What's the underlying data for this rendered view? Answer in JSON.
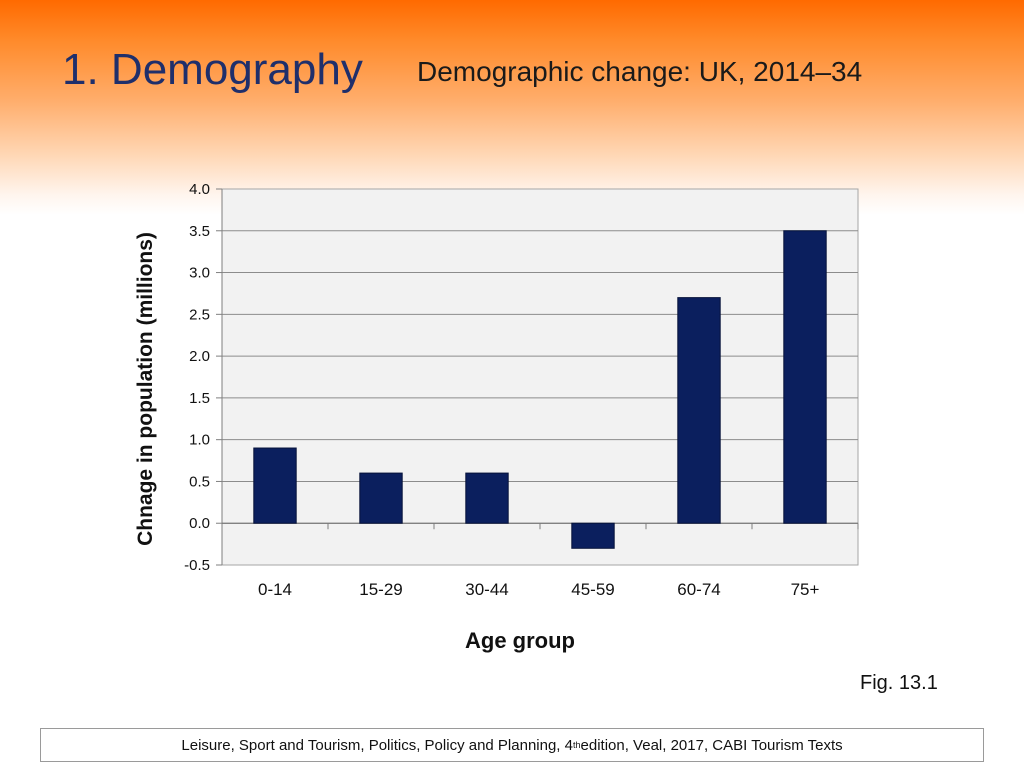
{
  "slide": {
    "title": "1. Demography",
    "subtitle": "Demographic change: UK, 2014–34",
    "fig_label": "Fig. 13.1",
    "citation": {
      "text_before": "Leisure, Sport and Tourism, Politics, Policy and Planning, 4",
      "superscript": "th",
      "text_after": " edition, Veal, 2017, CABI Tourism Texts"
    }
  },
  "chart_data": {
    "type": "bar",
    "title": "",
    "xlabel": "Age group",
    "ylabel": "Chnage in population (millions)",
    "categories": [
      "0-14",
      "15-29",
      "30-44",
      "45-59",
      "60-74",
      "75+"
    ],
    "values": [
      0.9,
      0.6,
      0.6,
      -0.3,
      2.7,
      3.5
    ],
    "ylim": [
      -0.5,
      4.0
    ],
    "yticks": [
      "-0.5",
      "0.0",
      "0.5",
      "1.0",
      "1.5",
      "2.0",
      "2.5",
      "3.0",
      "3.5",
      "4.0"
    ],
    "grid": true,
    "legend": "none",
    "colors": {
      "bar": "#0b1f5e",
      "plot_background": "#f2f2f2",
      "grid": "#8c8c8c"
    }
  }
}
